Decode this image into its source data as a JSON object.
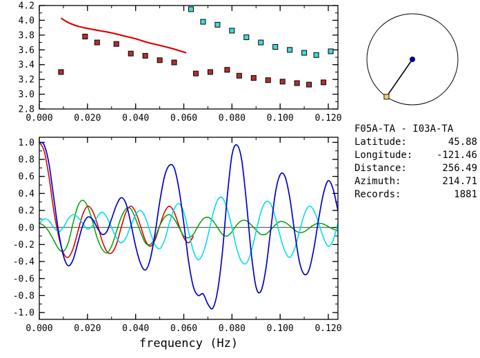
{
  "info_panel": {
    "station_pair": "F05A-TA - I03A-TA",
    "rows": [
      {
        "label": "Latitude:",
        "value": "45.88"
      },
      {
        "label": "Longitude:",
        "value": "-121.46"
      },
      {
        "label": "Distance:",
        "value": "256.49"
      },
      {
        "label": "Azimuth:",
        "value": "214.71"
      },
      {
        "label": "Records:",
        "value": "1881"
      }
    ]
  },
  "azimuth_diagram": {
    "azimuth_deg": 214.71,
    "circle_color": "#000000",
    "line_color": "#000000",
    "center_color": "#00008b",
    "station_marker_fill": "#e8d088",
    "station_marker_edge": "#4a3a00"
  },
  "chart_data": [
    {
      "id": "top-chart",
      "type": "scatter",
      "title": "",
      "xlabel": "",
      "ylabel": "",
      "xlim": [
        0,
        0.124
      ],
      "ylim": [
        2.8,
        4.2
      ],
      "x_minor_step": 0.01,
      "y_minor_step": 0.1,
      "xticks": [
        {
          "v": 0.0,
          "l": "0.000"
        },
        {
          "v": 0.02,
          "l": "0.020"
        },
        {
          "v": 0.04,
          "l": "0.040"
        },
        {
          "v": 0.06,
          "l": "0.060"
        },
        {
          "v": 0.08,
          "l": "0.080"
        },
        {
          "v": 0.1,
          "l": "0.100"
        },
        {
          "v": 0.12,
          "l": "0.120"
        }
      ],
      "yticks": [
        {
          "v": 2.8,
          "l": "2.8"
        },
        {
          "v": 3.0,
          "l": "3.0"
        },
        {
          "v": 3.2,
          "l": "3.2"
        },
        {
          "v": 3.4,
          "l": "3.4"
        },
        {
          "v": 3.6,
          "l": "3.6"
        },
        {
          "v": 3.8,
          "l": "3.8"
        },
        {
          "v": 4.0,
          "l": "4.0"
        },
        {
          "v": 4.2,
          "l": "4.2"
        }
      ],
      "series": [
        {
          "name": "reference-dispersion-line",
          "kind": "line",
          "color": "#e00000",
          "width": 2.2,
          "points": [
            [
              0.009,
              4.03
            ],
            [
              0.012,
              3.97
            ],
            [
              0.016,
              3.92
            ],
            [
              0.02,
              3.89
            ],
            [
              0.025,
              3.86
            ],
            [
              0.03,
              3.83
            ],
            [
              0.035,
              3.79
            ],
            [
              0.04,
              3.75
            ],
            [
              0.045,
              3.7
            ],
            [
              0.05,
              3.66
            ],
            [
              0.055,
              3.62
            ],
            [
              0.058,
              3.59
            ],
            [
              0.061,
              3.56
            ]
          ]
        },
        {
          "name": "group-velocity-squares",
          "kind": "squares",
          "color": "#b03030",
          "edge": "#000000",
          "size": 7,
          "points": [
            [
              0.009,
              3.3
            ],
            [
              0.019,
              3.78
            ],
            [
              0.024,
              3.7
            ],
            [
              0.032,
              3.68
            ],
            [
              0.038,
              3.55
            ],
            [
              0.044,
              3.52
            ],
            [
              0.05,
              3.46
            ],
            [
              0.056,
              3.43
            ],
            [
              0.065,
              3.28
            ],
            [
              0.071,
              3.3
            ],
            [
              0.078,
              3.33
            ],
            [
              0.083,
              3.25
            ],
            [
              0.089,
              3.22
            ],
            [
              0.095,
              3.19
            ],
            [
              0.101,
              3.17
            ],
            [
              0.107,
              3.15
            ],
            [
              0.112,
              3.13
            ],
            [
              0.118,
              3.16
            ]
          ]
        },
        {
          "name": "phase-velocity-squares",
          "kind": "squares",
          "color": "#45d8d8",
          "edge": "#000000",
          "size": 7,
          "points": [
            [
              0.063,
              4.15
            ],
            [
              0.068,
              3.98
            ],
            [
              0.074,
              3.94
            ],
            [
              0.08,
              3.86
            ],
            [
              0.086,
              3.77
            ],
            [
              0.092,
              3.7
            ],
            [
              0.098,
              3.64
            ],
            [
              0.104,
              3.6
            ],
            [
              0.11,
              3.56
            ],
            [
              0.115,
              3.53
            ],
            [
              0.121,
              3.58
            ]
          ]
        }
      ]
    },
    {
      "id": "bottom-chart",
      "type": "line",
      "title": "",
      "xlabel": "frequency (Hz)",
      "ylabel": "",
      "xlim": [
        0,
        0.124
      ],
      "ylim": [
        -1.08,
        1.06
      ],
      "hline": 0,
      "x_minor_step": 0.01,
      "y_minor_step": 0.1,
      "xticks": [
        {
          "v": 0.0,
          "l": "0.000"
        },
        {
          "v": 0.02,
          "l": "0.020"
        },
        {
          "v": 0.04,
          "l": "0.040"
        },
        {
          "v": 0.06,
          "l": "0.060"
        },
        {
          "v": 0.08,
          "l": "0.080"
        },
        {
          "v": 0.1,
          "l": "0.100"
        },
        {
          "v": 0.12,
          "l": "0.120"
        }
      ],
      "yticks": [
        {
          "v": -1.0,
          "l": "-1.0"
        },
        {
          "v": -0.8,
          "l": "-0.8"
        },
        {
          "v": -0.6,
          "l": "-0.6"
        },
        {
          "v": -0.4,
          "l": "-0.4"
        },
        {
          "v": -0.2,
          "l": "-0.2"
        },
        {
          "v": 0.0,
          "l": "0.0"
        },
        {
          "v": 0.2,
          "l": "0.2"
        },
        {
          "v": 0.4,
          "l": "0.4"
        },
        {
          "v": 0.6,
          "l": "0.6"
        },
        {
          "v": 0.8,
          "l": "0.8"
        },
        {
          "v": 1.0,
          "l": "1.0"
        }
      ],
      "series": [
        {
          "name": "red-spectrum-curve",
          "kind": "wave",
          "color": "#dd0000",
          "width": 1.6,
          "x_start": 0,
          "x_step": 0.002,
          "values": [
            1.0,
            0.9,
            0.6,
            0.2,
            -0.1,
            -0.3,
            -0.35,
            -0.25,
            -0.05,
            0.15,
            0.25,
            0.2,
            0.05,
            -0.15,
            -0.28,
            -0.3,
            -0.2,
            0.0,
            0.18,
            0.25,
            0.18,
            0.02,
            -0.15,
            -0.22,
            -0.15,
            0.02,
            0.18,
            0.25,
            0.18,
            0.02,
            -0.12,
            -0.18,
            -0.1
          ]
        },
        {
          "name": "green-spectrum-curve",
          "kind": "wave",
          "color": "#00a000",
          "width": 1.5,
          "x_start": 0,
          "x_step": 0.002,
          "values": [
            0.05,
            0.02,
            -0.05,
            -0.15,
            -0.25,
            -0.28,
            -0.18,
            0.05,
            0.25,
            0.32,
            0.25,
            0.08,
            -0.12,
            -0.25,
            -0.3,
            -0.22,
            -0.05,
            0.12,
            0.22,
            0.22,
            0.1,
            -0.05,
            -0.18,
            -0.2,
            -0.12,
            0.02,
            0.12,
            0.15,
            0.1,
            0.0,
            -0.1,
            -0.12,
            -0.08,
            0.02,
            0.1,
            0.12,
            0.08,
            0.0,
            -0.08,
            -0.1,
            -0.05,
            0.03,
            0.08,
            0.08,
            0.03,
            -0.03,
            -0.08,
            -0.08,
            -0.03,
            0.03,
            0.07,
            0.06,
            0.02,
            -0.03,
            -0.06,
            -0.05,
            -0.01,
            0.03,
            0.05,
            0.04,
            0.01,
            -0.02,
            -0.04
          ]
        },
        {
          "name": "cyan-spectrum-curve",
          "kind": "wave",
          "color": "#00dde8",
          "width": 1.6,
          "x_start": 0,
          "x_step": 0.002,
          "values": [
            0.05,
            0.1,
            0.08,
            0.0,
            -0.05,
            0.0,
            0.1,
            0.15,
            0.12,
            0.05,
            -0.02,
            0.02,
            0.12,
            0.18,
            0.12,
            0.0,
            -0.12,
            -0.18,
            -0.12,
            0.02,
            0.15,
            0.2,
            0.12,
            -0.05,
            -0.2,
            -0.25,
            -0.15,
            0.05,
            0.22,
            0.28,
            0.18,
            -0.05,
            -0.28,
            -0.38,
            -0.3,
            -0.1,
            0.15,
            0.32,
            0.35,
            0.22,
            0.0,
            -0.25,
            -0.4,
            -0.42,
            -0.28,
            -0.05,
            0.18,
            0.3,
            0.28,
            0.12,
            -0.1,
            -0.28,
            -0.35,
            -0.25,
            -0.05,
            0.15,
            0.25,
            0.2,
            0.05,
            -0.12,
            -0.22,
            -0.15,
            0.05
          ]
        },
        {
          "name": "blue-spectrum-curve",
          "kind": "wave",
          "color": "#0000cc",
          "width": 1.7,
          "x_start": 0,
          "x_step": 0.002,
          "values": [
            1.0,
            0.97,
            0.75,
            0.35,
            -0.05,
            -0.33,
            -0.45,
            -0.38,
            -0.18,
            0.02,
            0.12,
            0.1,
            0.0,
            -0.08,
            -0.05,
            0.1,
            0.26,
            0.35,
            0.28,
            0.05,
            -0.22,
            -0.42,
            -0.5,
            -0.38,
            -0.08,
            0.3,
            0.6,
            0.73,
            0.7,
            0.45,
            0.05,
            -0.4,
            -0.7,
            -0.8,
            -0.78,
            -0.9,
            -0.95,
            -0.75,
            -0.3,
            0.35,
            0.85,
            0.97,
            0.8,
            0.3,
            -0.3,
            -0.7,
            -0.75,
            -0.5,
            -0.05,
            0.4,
            0.62,
            0.6,
            0.35,
            -0.05,
            -0.4,
            -0.55,
            -0.5,
            -0.25,
            0.1,
            0.4,
            0.55,
            0.45,
            0.2
          ]
        }
      ]
    }
  ]
}
